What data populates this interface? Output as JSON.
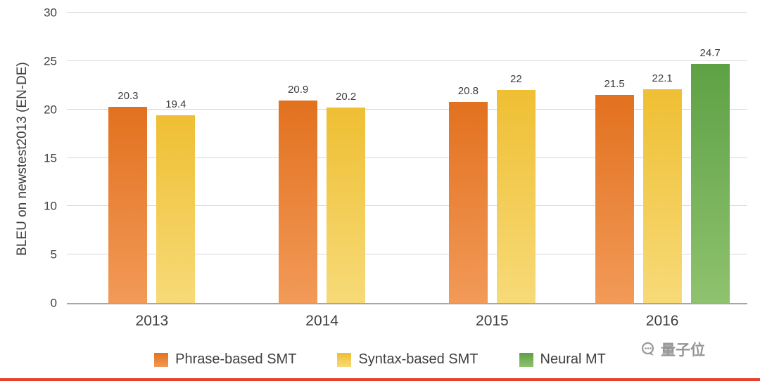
{
  "chart": {
    "watermark": "量子位"
  },
  "chart_data": {
    "type": "bar",
    "title": "",
    "xlabel": "",
    "ylabel": "BLEU on newstest2013 (EN-DE)",
    "categories": [
      "2013",
      "2014",
      "2015",
      "2016"
    ],
    "series": [
      {
        "name": "Phrase-based SMT",
        "color": "#e2711f",
        "color_light": "#f29a58",
        "values": [
          20.3,
          20.9,
          20.8,
          21.5
        ]
      },
      {
        "name": "Syntax-based SMT",
        "color": "#efbf33",
        "color_light": "#f7da78",
        "values": [
          19.4,
          20.2,
          22,
          22.1
        ]
      },
      {
        "name": "Neural MT",
        "color": "#5ea145",
        "color_light": "#8fc26e",
        "values": [
          null,
          null,
          null,
          24.7
        ]
      }
    ],
    "ylim": [
      0,
      30
    ],
    "yticks": [
      0,
      5,
      10,
      15,
      20,
      25,
      30
    ],
    "grid": true,
    "legend_position": "bottom"
  }
}
